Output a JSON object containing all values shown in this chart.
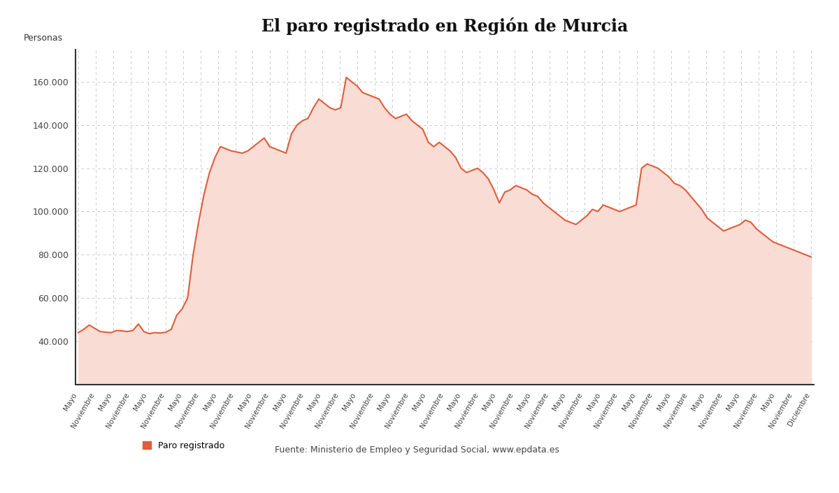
{
  "title": "El paro registrado en Región de Murcia",
  "ylabel": "Personas",
  "line_color": "#e05c3a",
  "fill_color": "#f9ddd5",
  "background_color": "#ffffff",
  "ylim": [
    20000,
    175000
  ],
  "yticks": [
    40000,
    60000,
    80000,
    100000,
    120000,
    140000,
    160000
  ],
  "ytick_labels": [
    "40.000",
    "60.000",
    "80.000",
    "100.000",
    "120.000",
    "140.000",
    "160.000"
  ],
  "legend_label": "Paro registrado",
  "source_text": "Fuente: Ministerio de Empleo y Seguridad Social, www.epdata.es",
  "x_labels": [
    "Mayo",
    "Noviembre",
    "Mayo",
    "Noviembre",
    "Mayo",
    "Noviembre",
    "Mayo",
    "Noviembre",
    "Mayo",
    "Noviembre",
    "Mayo",
    "Noviembre",
    "Mayo",
    "Noviembre",
    "Mayo",
    "Noviembre",
    "Mayo",
    "Noviembre",
    "Mayo",
    "Noviembre",
    "Mayo",
    "Noviembre",
    "Mayo",
    "Noviembre",
    "Mayo",
    "Noviembre",
    "Mayo",
    "Noviembre",
    "Mayo",
    "Noviembre",
    "Mayo",
    "Noviembre",
    "Mayo",
    "Noviembre",
    "Mayo",
    "Noviembre",
    "Mayo",
    "Noviembre",
    "Mayo",
    "Noviembre",
    "Mayo",
    "Noviembre",
    "Diciembre"
  ],
  "values": [
    44000,
    45500,
    47500,
    46000,
    44500,
    44200,
    44000,
    45000,
    44800,
    44500,
    45000,
    48000,
    44500,
    43500,
    44000,
    43800,
    44200,
    45500,
    52000,
    55000,
    60000,
    80000,
    95000,
    108000,
    118000,
    125000,
    130000,
    129000,
    128000,
    127500,
    127000,
    128000,
    130000,
    132000,
    134000,
    130000,
    129000,
    128000,
    127000,
    136000,
    140000,
    142000,
    143000,
    148000,
    152000,
    150000,
    148000,
    147000,
    148000,
    162000,
    160000,
    158000,
    155000,
    154000,
    153000,
    152000,
    148000,
    145000,
    143000,
    144000,
    145000,
    142000,
    140000,
    138000,
    132000,
    130000,
    132000,
    130000,
    128000,
    125000,
    120000,
    118000,
    119000,
    120000,
    118000,
    115000,
    110000,
    104000,
    109000,
    110000,
    112000,
    111000,
    110000,
    108000,
    107000,
    104000,
    102000,
    100000,
    98000,
    96000,
    95000,
    94000,
    96000,
    98000,
    101000,
    100000,
    103000,
    102000,
    101000,
    100000,
    101000,
    102000,
    103000,
    120000,
    122000,
    121000,
    120000,
    118000,
    116000,
    113000,
    112000,
    110000,
    107000,
    104000,
    101000,
    97000,
    95000,
    93000,
    91000,
    92000,
    93000,
    94000,
    96000,
    95000,
    92000,
    90000,
    88000,
    86000,
    85000,
    84000,
    83000,
    82000,
    81000,
    80000,
    79000
  ]
}
